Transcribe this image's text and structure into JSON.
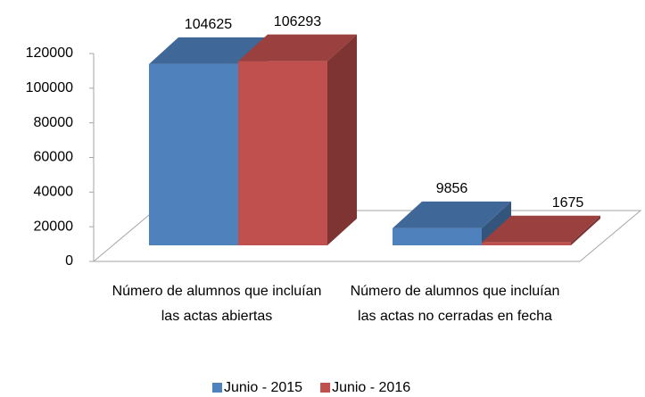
{
  "chart_data": {
    "type": "bar3d",
    "categories": [
      "Número de alumnos que incluían las actas abiertas",
      "Número de alumnos que incluían las actas no cerradas en fecha"
    ],
    "series": [
      {
        "name": "Junio - 2015",
        "color": "#4f81bd",
        "values": [
          104625,
          9856
        ]
      },
      {
        "name": "Junio - 2016",
        "color": "#c0504d",
        "values": [
          106293,
          1675
        ]
      }
    ],
    "ylim": [
      0,
      120000
    ],
    "yticks": [
      0,
      20000,
      40000,
      60000,
      80000,
      100000,
      120000
    ],
    "grid": false,
    "legend": "bottom"
  }
}
